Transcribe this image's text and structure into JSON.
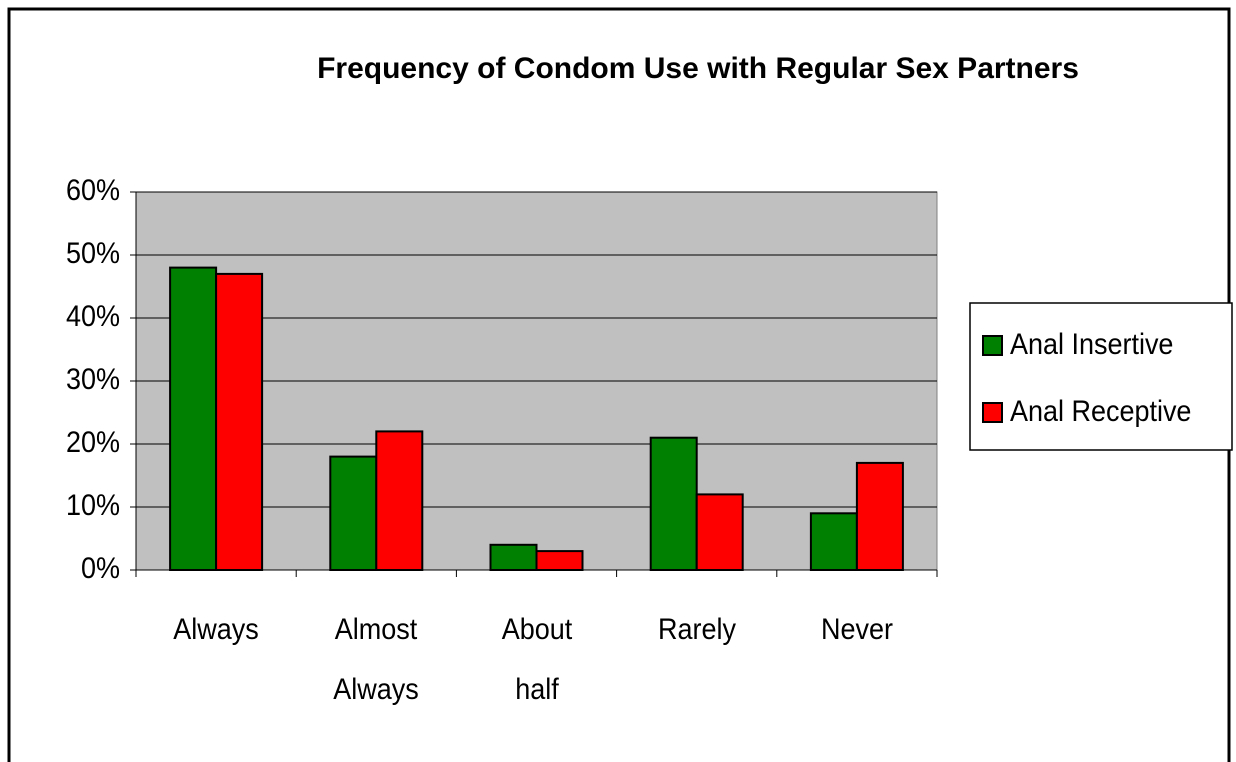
{
  "chart_data": {
    "type": "bar",
    "title": "Frequency of Condom Use with Regular Sex Partners",
    "categories": [
      "Always",
      "Almost Always",
      "About half",
      "Rarely",
      "Never"
    ],
    "series": [
      {
        "name": "Anal Insertive",
        "color": "#008000",
        "values": [
          48,
          18,
          4,
          21,
          9
        ]
      },
      {
        "name": "Anal Receptive",
        "color": "#ff0000",
        "values": [
          47,
          22,
          3,
          12,
          17
        ]
      }
    ],
    "ylim": [
      0,
      60
    ],
    "yticks": [
      {
        "value": 0,
        "label": "0%"
      },
      {
        "value": 10,
        "label": "10%"
      },
      {
        "value": 20,
        "label": "20%"
      },
      {
        "value": 30,
        "label": "30%"
      },
      {
        "value": 40,
        "label": "40%"
      },
      {
        "value": 50,
        "label": "50%"
      },
      {
        "value": 60,
        "label": "60%"
      }
    ],
    "grid": true,
    "legend": "right"
  }
}
